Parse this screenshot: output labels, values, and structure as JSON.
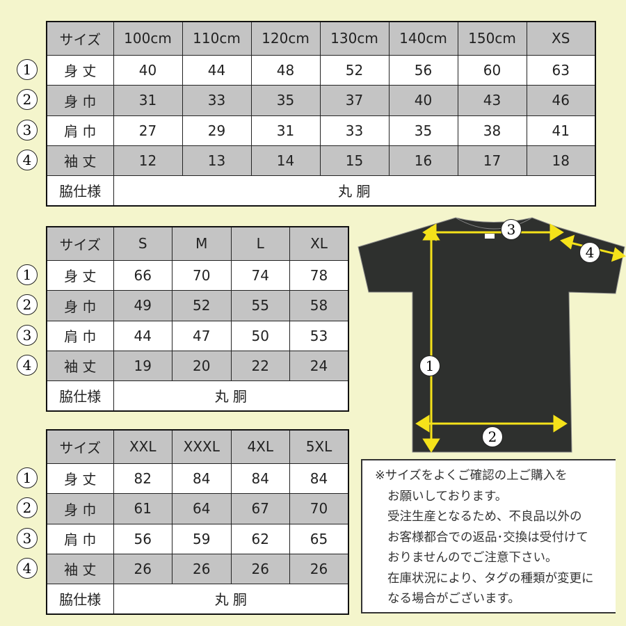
{
  "tables": [
    {
      "header": [
        "サイズ",
        "100cm",
        "110cm",
        "120cm",
        "130cm",
        "140cm",
        "150cm",
        "XS"
      ],
      "rows": [
        {
          "num": "1",
          "label": "身 丈",
          "values": [
            "40",
            "44",
            "48",
            "52",
            "56",
            "60",
            "63"
          ]
        },
        {
          "num": "2",
          "label": "身 巾",
          "values": [
            "31",
            "33",
            "35",
            "37",
            "40",
            "43",
            "46"
          ]
        },
        {
          "num": "3",
          "label": "肩 巾",
          "values": [
            "27",
            "29",
            "31",
            "33",
            "35",
            "38",
            "41"
          ]
        },
        {
          "num": "4",
          "label": "袖 丈",
          "values": [
            "12",
            "13",
            "14",
            "15",
            "16",
            "17",
            "18"
          ]
        }
      ],
      "footer": {
        "label": "脇仕様",
        "value": "丸 胴"
      }
    },
    {
      "header": [
        "サイズ",
        "S",
        "M",
        "L",
        "XL"
      ],
      "rows": [
        {
          "num": "1",
          "label": "身 丈",
          "values": [
            "66",
            "70",
            "74",
            "78"
          ]
        },
        {
          "num": "2",
          "label": "身 巾",
          "values": [
            "49",
            "52",
            "55",
            "58"
          ]
        },
        {
          "num": "3",
          "label": "肩 巾",
          "values": [
            "44",
            "47",
            "50",
            "53"
          ]
        },
        {
          "num": "4",
          "label": "袖 丈",
          "values": [
            "19",
            "20",
            "22",
            "24"
          ]
        }
      ],
      "footer": {
        "label": "脇仕様",
        "value": "丸 胴"
      }
    },
    {
      "header": [
        "サイズ",
        "XXL",
        "XXXL",
        "4XL",
        "5XL"
      ],
      "rows": [
        {
          "num": "1",
          "label": "身 丈",
          "values": [
            "82",
            "84",
            "84",
            "84"
          ]
        },
        {
          "num": "2",
          "label": "身 巾",
          "values": [
            "61",
            "64",
            "67",
            "70"
          ]
        },
        {
          "num": "3",
          "label": "肩 巾",
          "values": [
            "56",
            "59",
            "62",
            "65"
          ]
        },
        {
          "num": "4",
          "label": "袖 丈",
          "values": [
            "26",
            "26",
            "26",
            "26"
          ]
        }
      ],
      "footer": {
        "label": "脇仕様",
        "value": "丸 胴"
      }
    }
  ],
  "diagram": {
    "labels": [
      "1",
      "2",
      "3",
      "4"
    ],
    "shirt_color": "#2e302e",
    "arrow_color": "#f5e21a"
  },
  "note": {
    "lines": [
      "※サイズをよくご確認の上ご購入を",
      "お願いしております。",
      "受注生産となるため、不良品以外の",
      "お客様都合での返品･交換は受付けて",
      "おりませんのでご注意下さい。",
      "在庫状況により、タグの種類が変更に",
      "なる場合がございます。"
    ]
  },
  "colors": {
    "background": "#f4f5cc",
    "row_gray": "#c4c4c4"
  }
}
